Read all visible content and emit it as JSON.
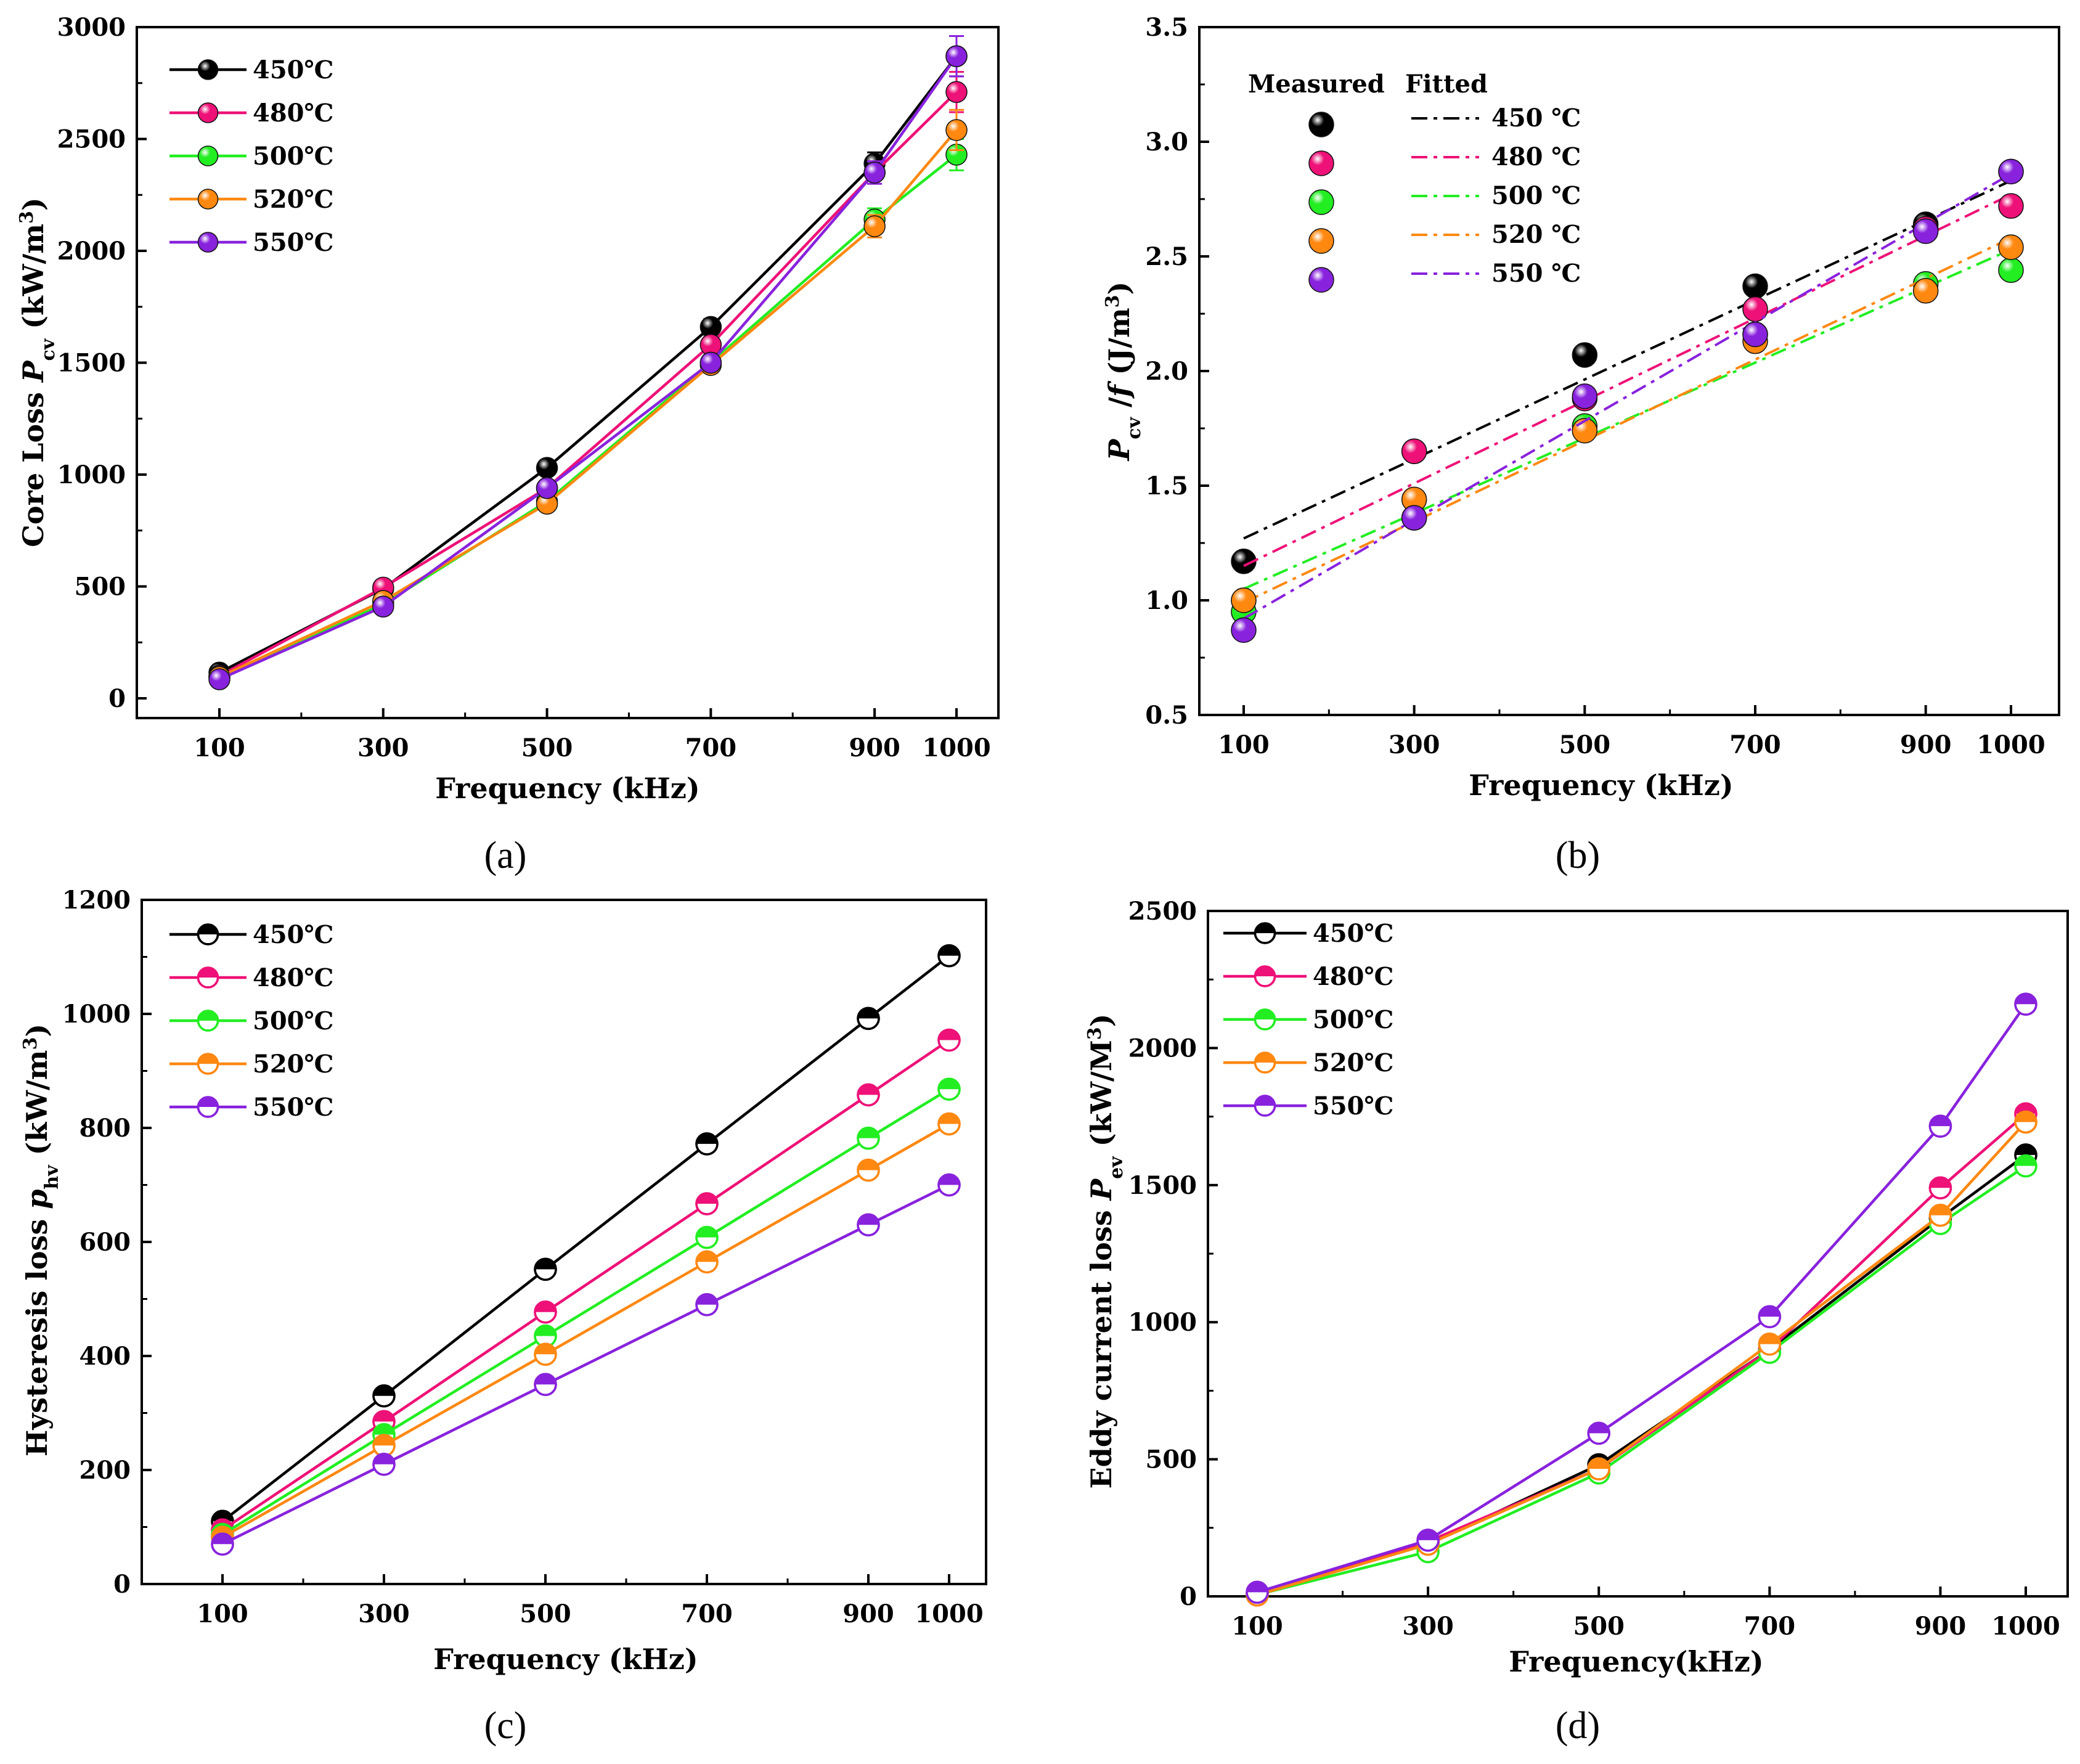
{
  "colors": {
    "450": "#000000",
    "480": "#ee1177",
    "500": "#22ee22",
    "520": "#ff8811",
    "550": "#8822dd"
  },
  "chart_data": [
    {
      "id": "a",
      "type": "line",
      "caption": "(a)",
      "xlabel": "Frequency (kHz)",
      "ylabel": "Core Loss P_cv (kW/m^3)",
      "ylabel_parts": {
        "prefix": "Core Loss ",
        "symbol": "P",
        "sub": "cv",
        "unit": " (kW/m",
        "sup": "3",
        "close": ")"
      },
      "x": [
        100,
        300,
        500,
        700,
        900,
        1000
      ],
      "x_ticks": [
        "100",
        "300",
        "500",
        "700",
        "900",
        "1000"
      ],
      "xlim": [
        0,
        1050
      ],
      "ylim": [
        0,
        3000
      ],
      "y_ticks": [
        "0",
        "500",
        "1000",
        "1500",
        "2000",
        "2500",
        "3000"
      ],
      "legend_position": "top-left",
      "series": [
        {
          "name": "450℃",
          "color_key": "450",
          "values": [
            115,
            490,
            1030,
            1660,
            2390,
            2870
          ],
          "errors": [
            20,
            20,
            25,
            35,
            50,
            90
          ]
        },
        {
          "name": "480℃",
          "color_key": "480",
          "values": [
            100,
            495,
            940,
            1580,
            2350,
            2710
          ],
          "errors": [
            20,
            20,
            25,
            35,
            50,
            90
          ]
        },
        {
          "name": "500℃",
          "color_key": "500",
          "values": [
            95,
            420,
            880,
            1500,
            2140,
            2430
          ],
          "errors": [
            20,
            20,
            25,
            35,
            50,
            70
          ]
        },
        {
          "name": "520℃",
          "color_key": "520",
          "values": [
            95,
            435,
            870,
            1490,
            2110,
            2540
          ],
          "errors": [
            20,
            20,
            25,
            35,
            50,
            90
          ]
        },
        {
          "name": "550℃",
          "color_key": "550",
          "values": [
            85,
            410,
            940,
            1500,
            2350,
            2870
          ],
          "errors": [
            20,
            20,
            25,
            35,
            50,
            90
          ]
        }
      ]
    },
    {
      "id": "b",
      "type": "scatter",
      "caption": "(b)",
      "xlabel": "Frequency (kHz)",
      "ylabel": "P_cv /f (J/m^3)",
      "ylabel_parts": {
        "symbol": "P",
        "sub": "cv",
        "slash": " /",
        "f": "f",
        "unit": " (J/m",
        "sup": "3",
        "close": ")"
      },
      "x": [
        100,
        300,
        500,
        700,
        900,
        1000
      ],
      "x_ticks": [
        "100",
        "300",
        "500",
        "700",
        "900",
        "1000"
      ],
      "xlim": [
        0,
        1050
      ],
      "ylim": [
        0.5,
        3.5
      ],
      "y_ticks": [
        "0.5",
        "1.0",
        "1.5",
        "2.0",
        "2.5",
        "3.0",
        "3.5"
      ],
      "legend_header_measured": "Measured",
      "legend_header_fitted": "Fitted",
      "legend_position": "top-left",
      "series": [
        {
          "name": "450 ℃",
          "color_key": "450",
          "values": [
            1.17,
            1.65,
            2.07,
            2.37,
            2.64,
            2.87
          ],
          "fit": [
            1.27,
            2.83
          ]
        },
        {
          "name": "480 ℃",
          "color_key": "480",
          "values": [
            1.0,
            1.65,
            1.88,
            2.27,
            2.62,
            2.72
          ],
          "fit": [
            1.15,
            2.77
          ]
        },
        {
          "name": "500 ℃",
          "color_key": "500",
          "values": [
            0.95,
            1.36,
            1.76,
            2.16,
            2.38,
            2.44
          ],
          "fit": [
            1.05,
            2.53
          ]
        },
        {
          "name": "520 ℃",
          "color_key": "520",
          "values": [
            1.0,
            1.44,
            1.74,
            2.13,
            2.35,
            2.54
          ],
          "fit": [
            0.99,
            2.58
          ]
        },
        {
          "name": "550 ℃",
          "color_key": "550",
          "values": [
            0.87,
            1.36,
            1.89,
            2.16,
            2.61,
            2.87
          ],
          "fit": [
            0.92,
            2.86
          ]
        }
      ]
    },
    {
      "id": "c",
      "type": "line",
      "caption": "(c)",
      "xlabel": "Frequency (kHz)",
      "ylabel": "Hysteresis loss p_hv (kW/m^3)",
      "ylabel_parts": {
        "prefix": "Hysteresis loss ",
        "symbol": "p",
        "sub": "hv",
        "unit": " (kW/m",
        "sup": "3",
        "close": ")"
      },
      "x": [
        100,
        300,
        500,
        700,
        900,
        1000
      ],
      "x_ticks": [
        "100",
        "300",
        "500",
        "700",
        "900",
        "1000"
      ],
      "xlim": [
        0,
        1050
      ],
      "ylim": [
        0,
        1200
      ],
      "y_ticks": [
        "0",
        "200",
        "400",
        "600",
        "800",
        "1000",
        "1200"
      ],
      "legend_position": "top-left",
      "series": [
        {
          "name": "450℃",
          "color_key": "450",
          "values": [
            110,
            330,
            552,
            772,
            992,
            1102
          ]
        },
        {
          "name": "480℃",
          "color_key": "480",
          "values": [
            95,
            285,
            477,
            667,
            858,
            954
          ]
        },
        {
          "name": "500℃",
          "color_key": "500",
          "values": [
            87,
            262,
            435,
            608,
            782,
            868
          ]
        },
        {
          "name": "520℃",
          "color_key": "520",
          "values": [
            82,
            243,
            403,
            565,
            726,
            807
          ]
        },
        {
          "name": "550℃",
          "color_key": "550",
          "values": [
            70,
            210,
            350,
            490,
            630,
            700
          ]
        }
      ]
    },
    {
      "id": "d",
      "type": "line",
      "caption": "(d)",
      "xlabel": "Frequency(kHz)",
      "ylabel": "Eddy current loss P_ev (kW/M^3)",
      "ylabel_parts": {
        "prefix": "Eddy current loss ",
        "symbol": "P",
        "sub": "ev",
        "unit": " (kW/M",
        "sup": "3",
        "close": ")"
      },
      "x": [
        100,
        300,
        500,
        700,
        900,
        1000
      ],
      "x_ticks": [
        "100",
        "300",
        "500",
        "700",
        "900",
        "1000"
      ],
      "xlim": [
        0,
        1050
      ],
      "ylim": [
        0,
        2500
      ],
      "y_ticks": [
        "0",
        "500",
        "1000",
        "1500",
        "2000",
        "2500"
      ],
      "legend_position": "top-left",
      "series": [
        {
          "name": "450℃",
          "color_key": "450",
          "values": [
            8,
            190,
            480,
            900,
            1380,
            1610
          ]
        },
        {
          "name": "480℃",
          "color_key": "480",
          "values": [
            5,
            200,
            465,
            900,
            1490,
            1760
          ]
        },
        {
          "name": "500℃",
          "color_key": "500",
          "values": [
            6,
            163,
            450,
            890,
            1360,
            1570
          ]
        },
        {
          "name": "520℃",
          "color_key": "520",
          "values": [
            5,
            190,
            465,
            920,
            1390,
            1730
          ]
        },
        {
          "name": "550℃",
          "color_key": "550",
          "values": [
            15,
            205,
            595,
            1020,
            1715,
            2160
          ]
        }
      ]
    }
  ]
}
